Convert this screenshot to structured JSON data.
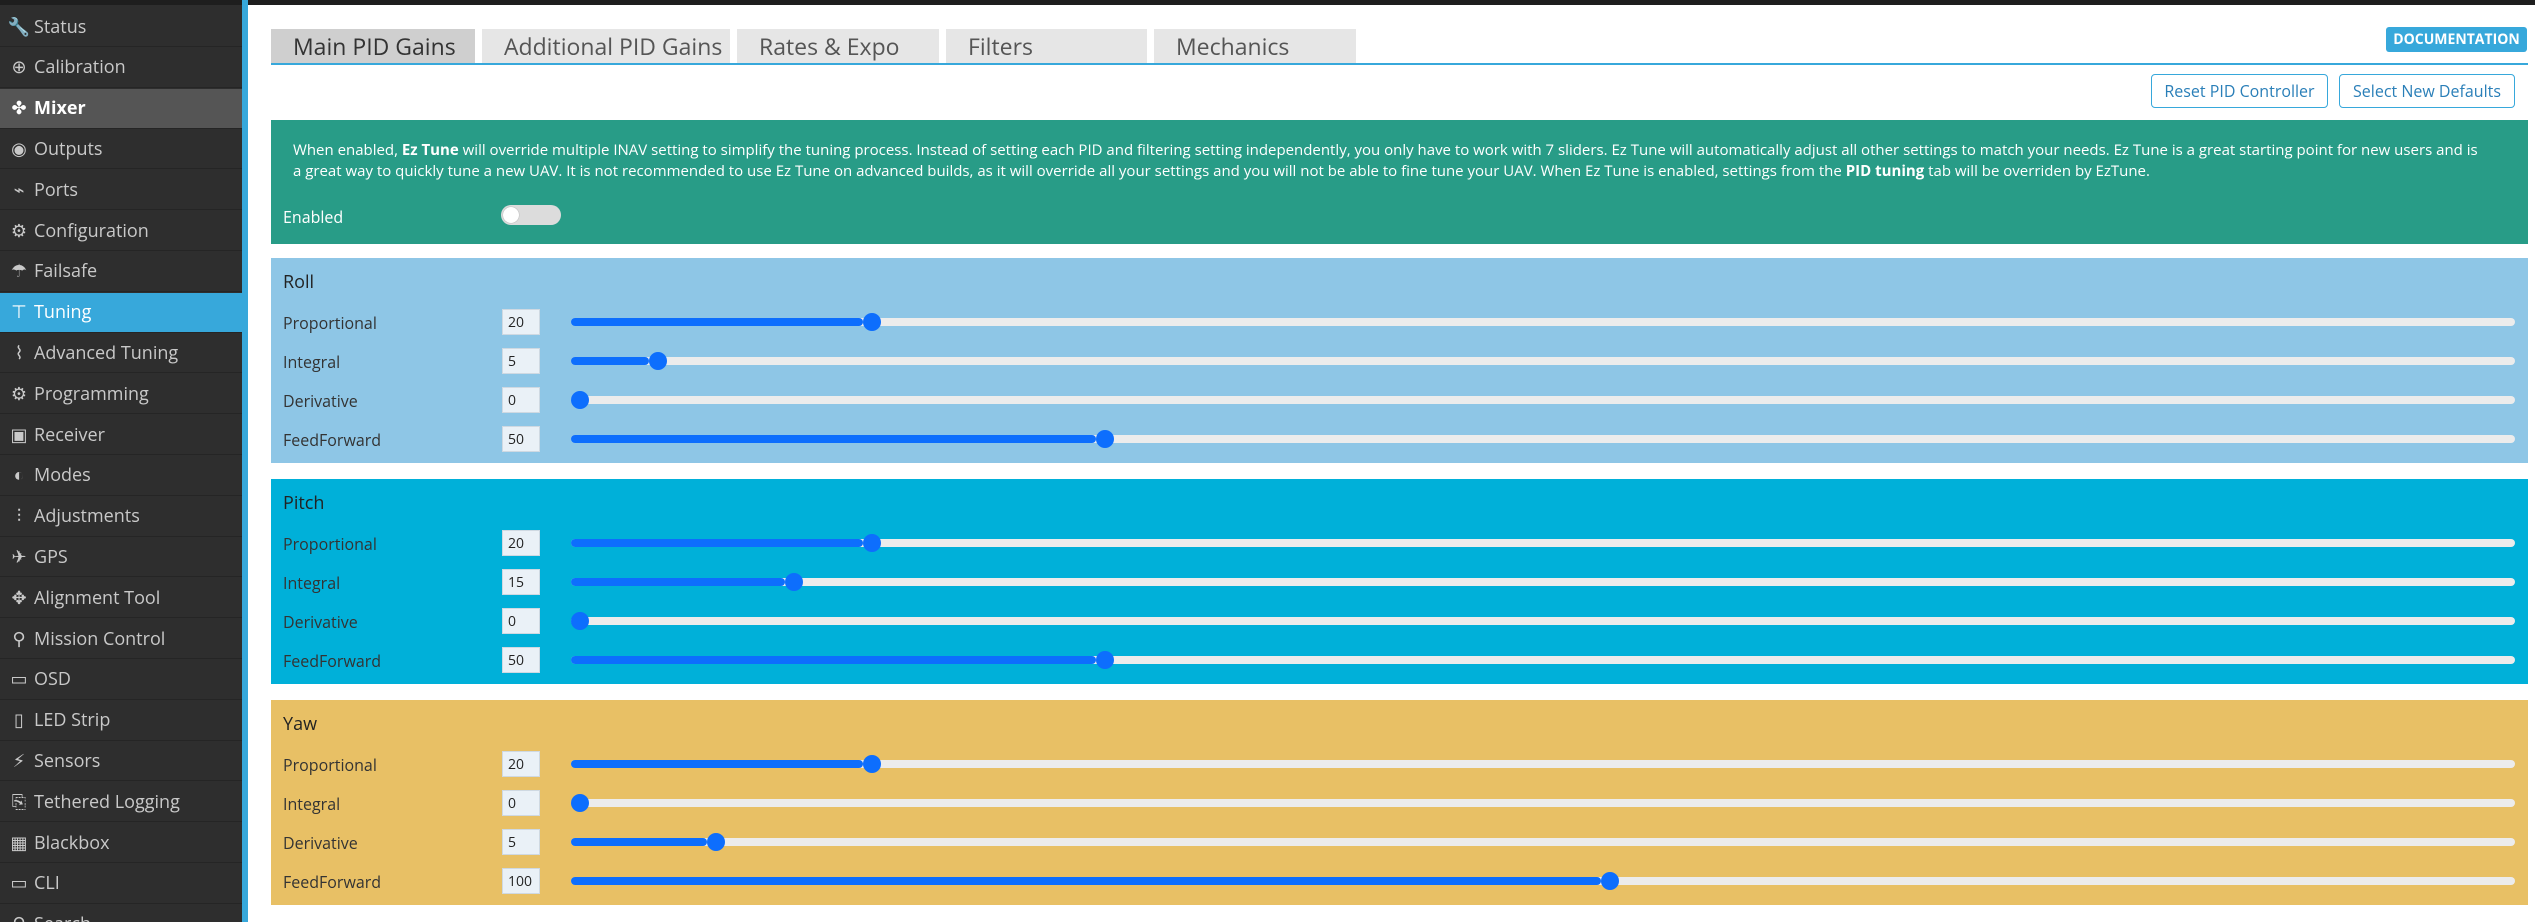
{
  "sidebar": {
    "items": [
      {
        "label": "Status",
        "icon": "wrench-icon",
        "glyph": "🔧",
        "state": "normal"
      },
      {
        "label": "Calibration",
        "icon": "crosshair-icon",
        "glyph": "⊕",
        "state": "normal"
      },
      {
        "label": "Mixer",
        "icon": "propeller-icon",
        "glyph": "✤",
        "state": "highlight"
      },
      {
        "label": "Outputs",
        "icon": "motor-icon",
        "glyph": "◉",
        "state": "normal"
      },
      {
        "label": "Ports",
        "icon": "plug-icon",
        "glyph": "⌁",
        "state": "normal"
      },
      {
        "label": "Configuration",
        "icon": "gear-icon",
        "glyph": "⚙",
        "state": "normal"
      },
      {
        "label": "Failsafe",
        "icon": "parachute-icon",
        "glyph": "☂",
        "state": "normal"
      },
      {
        "label": "Tuning",
        "icon": "sitemap-icon",
        "glyph": "⊤",
        "state": "active"
      },
      {
        "label": "Advanced Tuning",
        "icon": "advanced-tuning-icon",
        "glyph": "⌇",
        "state": "normal"
      },
      {
        "label": "Programming",
        "icon": "gear-icon",
        "glyph": "⚙",
        "state": "normal"
      },
      {
        "label": "Receiver",
        "icon": "receiver-icon",
        "glyph": "▣",
        "state": "normal"
      },
      {
        "label": "Modes",
        "icon": "modes-icon",
        "glyph": "◐",
        "state": "normal"
      },
      {
        "label": "Adjustments",
        "icon": "sliders-icon",
        "glyph": "⫶",
        "state": "normal"
      },
      {
        "label": "GPS",
        "icon": "satellite-icon",
        "glyph": "✈",
        "state": "normal"
      },
      {
        "label": "Alignment Tool",
        "icon": "alignment-icon",
        "glyph": "✥",
        "state": "normal"
      },
      {
        "label": "Mission Control",
        "icon": "map-marker-icon",
        "glyph": "⚲",
        "state": "normal"
      },
      {
        "label": "OSD",
        "icon": "osd-icon",
        "glyph": "▭",
        "state": "normal"
      },
      {
        "label": "LED Strip",
        "icon": "led-strip-icon",
        "glyph": "▯",
        "state": "normal"
      },
      {
        "label": "Sensors",
        "icon": "sensors-icon",
        "glyph": "⚡",
        "state": "normal"
      },
      {
        "label": "Tethered Logging",
        "icon": "tethered-logging-icon",
        "glyph": "⎘",
        "state": "normal"
      },
      {
        "label": "Blackbox",
        "icon": "blackbox-icon",
        "glyph": "▦",
        "state": "normal"
      },
      {
        "label": "CLI",
        "icon": "terminal-icon",
        "glyph": "▭",
        "state": "normal"
      },
      {
        "label": "Search",
        "icon": "search-icon",
        "glyph": "⚲",
        "state": "normal"
      }
    ]
  },
  "tabs": [
    {
      "label": "Main PID Gains",
      "active": true
    },
    {
      "label": "Additional PID Gains",
      "active": false
    },
    {
      "label": "Rates & Expo",
      "active": false
    },
    {
      "label": "Filters",
      "active": false
    },
    {
      "label": "Mechanics",
      "active": false
    }
  ],
  "documentation_label": "DOCUMENTATION",
  "buttons": {
    "reset_pid": "Reset PID Controller",
    "select_defaults": "Select New Defaults"
  },
  "eztune": {
    "desc_pre": "When enabled, ",
    "desc_bold1": "Ez Tune",
    "desc_mid": " will override multiple INAV setting to simplify the tuning process. Instead of setting each PID and filtering setting independently, you only have to work with 7 sliders. Ez Tune will automatically adjust all other settings to match your needs. Ez Tune is a great starting point for new users and is a great way to quickly tune a new UAV. It is not recommended to use Ez Tune on advanced builds, as it will override all your settings and you will not be able to fine tune your UAV. When Ez Tune is enabled, settings from the ",
    "desc_bold2": "PID tuning",
    "desc_post": " tab will be overriden by EzTune.",
    "enabled_label": "Enabled",
    "enabled": false
  },
  "slider_max": 200,
  "pid": {
    "roll": {
      "title": "Roll",
      "color": "#8ec6e6",
      "rows": [
        {
          "label": "Proportional",
          "value": "20",
          "pos": 0.15
        },
        {
          "label": "Integral",
          "value": "5",
          "pos": 0.04
        },
        {
          "label": "Derivative",
          "value": "0",
          "pos": 0.0
        },
        {
          "label": "FeedForward",
          "value": "50",
          "pos": 0.27
        }
      ]
    },
    "pitch": {
      "title": "Pitch",
      "color": "#00b0d9",
      "rows": [
        {
          "label": "Proportional",
          "value": "20",
          "pos": 0.15
        },
        {
          "label": "Integral",
          "value": "15",
          "pos": 0.11
        },
        {
          "label": "Derivative",
          "value": "0",
          "pos": 0.0
        },
        {
          "label": "FeedForward",
          "value": "50",
          "pos": 0.27
        }
      ]
    },
    "yaw": {
      "title": "Yaw",
      "color": "#e8c065",
      "rows": [
        {
          "label": "Proportional",
          "value": "20",
          "pos": 0.15
        },
        {
          "label": "Integral",
          "value": "0",
          "pos": 0.0
        },
        {
          "label": "Derivative",
          "value": "5",
          "pos": 0.07
        },
        {
          "label": "FeedForward",
          "value": "100",
          "pos": 0.53
        }
      ]
    }
  }
}
